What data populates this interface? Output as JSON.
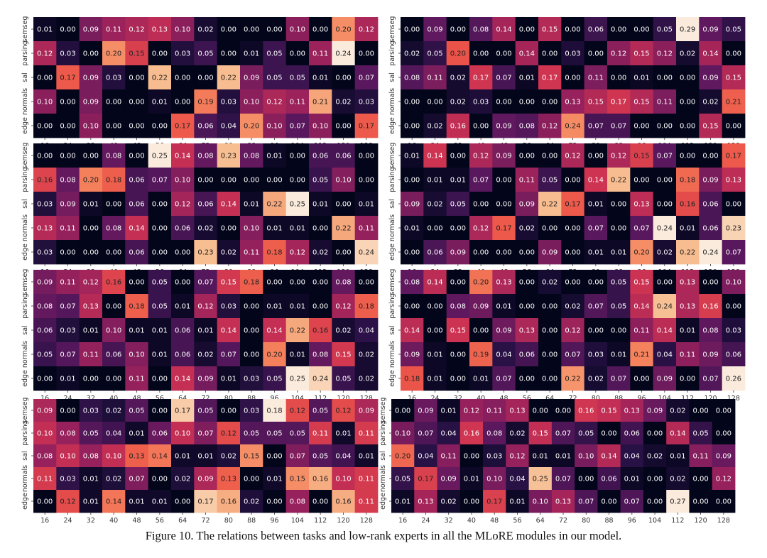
{
  "caption": "Figure 10. The relations between tasks and low-rank experts in all the MLoRE modules in our model.",
  "chart_data": [
    {
      "type": "heatmap",
      "rows": [
        "semseg",
        "parsing",
        "sal",
        "normals",
        "edge"
      ],
      "cols": [
        "16",
        "24",
        "32",
        "40",
        "48",
        "56",
        "64",
        "72",
        "80",
        "88",
        "96",
        "104",
        "112",
        "120",
        "128"
      ],
      "values": [
        [
          0.01,
          0.0,
          0.09,
          0.11,
          0.12,
          0.13,
          0.1,
          0.02,
          0.0,
          0.0,
          0.0,
          0.1,
          0.0,
          0.2,
          0.12
        ],
        [
          0.12,
          0.03,
          0.0,
          0.2,
          0.15,
          0.0,
          0.03,
          0.05,
          0.0,
          0.01,
          0.05,
          0.0,
          0.11,
          0.24,
          0.0
        ],
        [
          0.0,
          0.17,
          0.09,
          0.03,
          0.0,
          0.22,
          0.0,
          0.0,
          0.22,
          0.09,
          0.05,
          0.05,
          0.01,
          0.0,
          0.07
        ],
        [
          0.1,
          0.0,
          0.09,
          0.0,
          0.0,
          0.01,
          0.0,
          0.19,
          0.03,
          0.1,
          0.12,
          0.11,
          0.21,
          0.02,
          0.03
        ],
        [
          0.0,
          0.0,
          0.1,
          0.0,
          0.0,
          0.0,
          0.17,
          0.06,
          0.04,
          0.2,
          0.1,
          0.07,
          0.1,
          0.0,
          0.17
        ]
      ]
    },
    {
      "type": "heatmap",
      "rows": [
        "semseg",
        "parsing",
        "sal",
        "normals",
        "edge"
      ],
      "cols": [
        "16",
        "24",
        "32",
        "40",
        "48",
        "56",
        "64",
        "72",
        "80",
        "88",
        "96",
        "104",
        "112",
        "120",
        "128"
      ],
      "values": [
        [
          0.0,
          0.09,
          0.0,
          0.08,
          0.14,
          0.0,
          0.15,
          0.0,
          0.06,
          0.0,
          0.0,
          0.05,
          0.29,
          0.09,
          0.05
        ],
        [
          0.02,
          0.05,
          0.2,
          0.0,
          0.0,
          0.14,
          0.0,
          0.03,
          0.0,
          0.12,
          0.15,
          0.12,
          0.02,
          0.14,
          0.0
        ],
        [
          0.08,
          0.11,
          0.02,
          0.17,
          0.07,
          0.01,
          0.17,
          0.0,
          0.11,
          0.0,
          0.01,
          0.0,
          0.0,
          0.09,
          0.15
        ],
        [
          0.0,
          0.0,
          0.02,
          0.03,
          0.0,
          0.0,
          0.0,
          0.13,
          0.15,
          0.17,
          0.15,
          0.11,
          0.0,
          0.02,
          0.21
        ],
        [
          0.0,
          0.02,
          0.16,
          0.0,
          0.09,
          0.08,
          0.12,
          0.24,
          0.07,
          0.07,
          0.0,
          0.0,
          0.0,
          0.15,
          0.0
        ]
      ]
    },
    {
      "type": "heatmap",
      "rows": [
        "semseg",
        "parsing",
        "sal",
        "normals",
        "edge"
      ],
      "cols": [
        "16",
        "24",
        "32",
        "40",
        "48",
        "56",
        "64",
        "72",
        "80",
        "88",
        "96",
        "104",
        "112",
        "120",
        "128"
      ],
      "values": [
        [
          0.0,
          0.0,
          0.0,
          0.08,
          0.0,
          0.25,
          0.14,
          0.08,
          0.23,
          0.08,
          0.01,
          0.0,
          0.06,
          0.06,
          0.0
        ],
        [
          0.16,
          0.08,
          0.2,
          0.18,
          0.06,
          0.07,
          0.1,
          0.0,
          0.0,
          0.0,
          0.0,
          0.0,
          0.05,
          0.1,
          0.0
        ],
        [
          0.03,
          0.09,
          0.01,
          0.0,
          0.06,
          0.0,
          0.12,
          0.06,
          0.14,
          0.01,
          0.22,
          0.25,
          0.01,
          0.0,
          0.01
        ],
        [
          0.13,
          0.11,
          0.0,
          0.08,
          0.14,
          0.0,
          0.06,
          0.02,
          0.0,
          0.1,
          0.01,
          0.01,
          0.0,
          0.22,
          0.11
        ],
        [
          0.03,
          0.0,
          0.0,
          0.0,
          0.06,
          0.0,
          0.0,
          0.23,
          0.02,
          0.11,
          0.18,
          0.12,
          0.02,
          0.0,
          0.24
        ]
      ]
    },
    {
      "type": "heatmap",
      "rows": [
        "semseg",
        "parsing",
        "sal",
        "normals",
        "edge"
      ],
      "cols": [
        "16",
        "24",
        "32",
        "40",
        "48",
        "56",
        "64",
        "72",
        "80",
        "88",
        "96",
        "104",
        "112",
        "120",
        "128"
      ],
      "values": [
        [
          0.01,
          0.14,
          0.0,
          0.12,
          0.09,
          0.0,
          0.0,
          0.12,
          0.0,
          0.12,
          0.15,
          0.07,
          0.0,
          0.0,
          0.17
        ],
        [
          0.0,
          0.01,
          0.01,
          0.07,
          0.0,
          0.11,
          0.05,
          0.0,
          0.14,
          0.22,
          0.0,
          0.0,
          0.18,
          0.09,
          0.13
        ],
        [
          0.09,
          0.02,
          0.05,
          0.0,
          0.0,
          0.09,
          0.22,
          0.17,
          0.01,
          0.0,
          0.13,
          0.0,
          0.16,
          0.06,
          0.0
        ],
        [
          0.01,
          0.0,
          0.0,
          0.12,
          0.17,
          0.02,
          0.0,
          0.0,
          0.07,
          0.0,
          0.07,
          0.24,
          0.01,
          0.06,
          0.23
        ],
        [
          0.0,
          0.06,
          0.09,
          0.0,
          0.0,
          0.0,
          0.09,
          0.0,
          0.01,
          0.01,
          0.2,
          0.02,
          0.22,
          0.24,
          0.07
        ]
      ]
    },
    {
      "type": "heatmap",
      "rows": [
        "semseg",
        "parsing",
        "sal",
        "normals",
        "edge"
      ],
      "cols": [
        "16",
        "24",
        "32",
        "40",
        "48",
        "56",
        "64",
        "72",
        "80",
        "88",
        "96",
        "104",
        "112",
        "120",
        "128"
      ],
      "values": [
        [
          0.09,
          0.11,
          0.12,
          0.16,
          0.0,
          0.05,
          0.0,
          0.07,
          0.15,
          0.18,
          0.0,
          0.0,
          0.0,
          0.08,
          0.0
        ],
        [
          0.08,
          0.07,
          0.13,
          0.0,
          0.18,
          0.05,
          0.01,
          0.12,
          0.03,
          0.0,
          0.01,
          0.01,
          0.0,
          0.12,
          0.18
        ],
        [
          0.06,
          0.03,
          0.01,
          0.1,
          0.01,
          0.01,
          0.06,
          0.01,
          0.14,
          0.0,
          0.14,
          0.22,
          0.16,
          0.02,
          0.04
        ],
        [
          0.05,
          0.07,
          0.11,
          0.06,
          0.1,
          0.01,
          0.06,
          0.02,
          0.07,
          0.0,
          0.2,
          0.01,
          0.08,
          0.15,
          0.02
        ],
        [
          0.0,
          0.01,
          0.0,
          0.0,
          0.11,
          0.0,
          0.14,
          0.09,
          0.01,
          0.03,
          0.05,
          0.25,
          0.24,
          0.05,
          0.02
        ]
      ]
    },
    {
      "type": "heatmap",
      "rows": [
        "semseg",
        "parsing",
        "sal",
        "normals",
        "edge"
      ],
      "cols": [
        "16",
        "24",
        "32",
        "40",
        "48",
        "56",
        "64",
        "72",
        "80",
        "88",
        "96",
        "104",
        "112",
        "120",
        "128"
      ],
      "values": [
        [
          0.08,
          0.14,
          0.0,
          0.2,
          0.13,
          0.0,
          0.02,
          0.0,
          0.0,
          0.05,
          0.15,
          0.0,
          0.13,
          0.0,
          0.1
        ],
        [
          0.0,
          0.0,
          0.08,
          0.09,
          0.01,
          0.0,
          0.0,
          0.02,
          0.07,
          0.05,
          0.14,
          0.24,
          0.13,
          0.16,
          0.0
        ],
        [
          0.14,
          0.0,
          0.15,
          0.0,
          0.09,
          0.13,
          0.0,
          0.12,
          0.0,
          0.0,
          0.11,
          0.14,
          0.01,
          0.08,
          0.03
        ],
        [
          0.09,
          0.01,
          0.0,
          0.19,
          0.04,
          0.06,
          0.0,
          0.07,
          0.03,
          0.01,
          0.21,
          0.04,
          0.11,
          0.09,
          0.06
        ],
        [
          0.18,
          0.01,
          0.0,
          0.01,
          0.07,
          0.0,
          0.0,
          0.22,
          0.02,
          0.07,
          0.0,
          0.09,
          0.0,
          0.07,
          0.26
        ]
      ]
    },
    {
      "type": "heatmap",
      "rows": [
        "semseg",
        "parsing",
        "sal",
        "normals",
        "edge"
      ],
      "cols": [
        "16",
        "24",
        "32",
        "40",
        "48",
        "56",
        "64",
        "72",
        "80",
        "88",
        "96",
        "104",
        "112",
        "120",
        "128"
      ],
      "values": [
        [
          0.09,
          0.0,
          0.03,
          0.02,
          0.05,
          0.0,
          0.17,
          0.05,
          0.0,
          0.03,
          0.18,
          0.12,
          0.05,
          0.12,
          0.09
        ],
        [
          0.1,
          0.08,
          0.05,
          0.04,
          0.01,
          0.06,
          0.1,
          0.07,
          0.12,
          0.05,
          0.05,
          0.05,
          0.11,
          0.01,
          0.11
        ],
        [
          0.08,
          0.1,
          0.08,
          0.1,
          0.13,
          0.14,
          0.01,
          0.01,
          0.02,
          0.15,
          0.0,
          0.07,
          0.05,
          0.04,
          0.01
        ],
        [
          0.11,
          0.03,
          0.01,
          0.02,
          0.07,
          0.0,
          0.02,
          0.09,
          0.13,
          0.0,
          0.01,
          0.15,
          0.16,
          0.1,
          0.11
        ],
        [
          0.0,
          0.12,
          0.01,
          0.14,
          0.01,
          0.01,
          0.0,
          0.17,
          0.16,
          0.02,
          0.0,
          0.08,
          0.0,
          0.16,
          0.11
        ]
      ]
    },
    {
      "type": "heatmap",
      "rows": [
        "semseg",
        "parsing",
        "sal",
        "normals",
        "edge"
      ],
      "cols": [
        "16",
        "24",
        "32",
        "40",
        "48",
        "56",
        "64",
        "72",
        "80",
        "88",
        "96",
        "104",
        "112",
        "120",
        "128"
      ],
      "values": [
        [
          0.0,
          0.09,
          0.01,
          0.12,
          0.11,
          0.13,
          0.0,
          0.0,
          0.16,
          0.15,
          0.13,
          0.09,
          0.02,
          0.0,
          0.0
        ],
        [
          0.1,
          0.07,
          0.04,
          0.16,
          0.08,
          0.02,
          0.15,
          0.07,
          0.05,
          0.0,
          0.06,
          0.0,
          0.14,
          0.05,
          0.0
        ],
        [
          0.2,
          0.04,
          0.11,
          0.0,
          0.03,
          0.12,
          0.01,
          0.01,
          0.1,
          0.14,
          0.04,
          0.02,
          0.01,
          0.11,
          0.09
        ],
        [
          0.05,
          0.17,
          0.09,
          0.01,
          0.1,
          0.04,
          0.25,
          0.07,
          0.0,
          0.06,
          0.01,
          0.0,
          0.02,
          0.0,
          0.12
        ],
        [
          0.01,
          0.13,
          0.02,
          0.0,
          0.17,
          0.01,
          0.1,
          0.13,
          0.07,
          0.0,
          0.07,
          0.0,
          0.27,
          0.0,
          0.0
        ]
      ]
    }
  ]
}
